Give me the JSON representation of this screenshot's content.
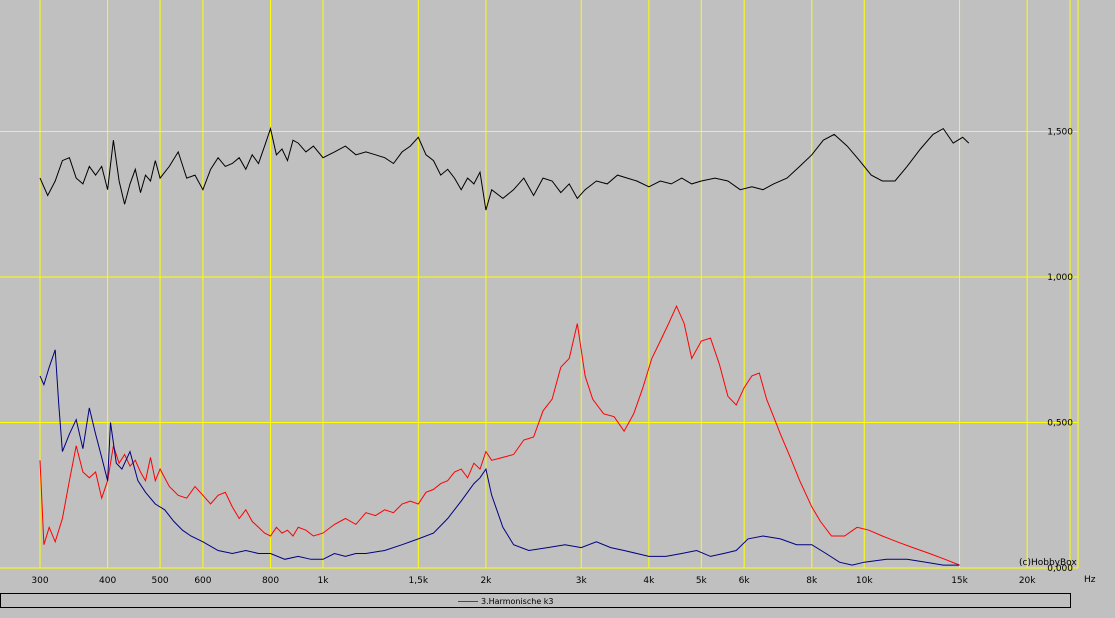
{
  "chart_data": {
    "type": "line",
    "x_scale": "log",
    "xlabel": "Hz",
    "xlim": [
      300,
      24000
    ],
    "ylim": [
      0,
      1.9
    ],
    "grid": true,
    "x_ticks": [
      {
        "v": 300,
        "label": "300"
      },
      {
        "v": 400,
        "label": "400"
      },
      {
        "v": 500,
        "label": "500"
      },
      {
        "v": 600,
        "label": "600"
      },
      {
        "v": 800,
        "label": "800"
      },
      {
        "v": 1000,
        "label": "1k"
      },
      {
        "v": 1500,
        "label": "1,5k"
      },
      {
        "v": 2000,
        "label": "2k"
      },
      {
        "v": 3000,
        "label": "3k"
      },
      {
        "v": 4000,
        "label": "4k"
      },
      {
        "v": 5000,
        "label": "5k"
      },
      {
        "v": 6000,
        "label": "6k"
      },
      {
        "v": 8000,
        "label": "8k"
      },
      {
        "v": 10000,
        "label": "10k"
      },
      {
        "v": 15000,
        "label": "15k"
      },
      {
        "v": 20000,
        "label": "20k"
      }
    ],
    "y_ticks": [
      {
        "v": 0,
        "label": "0,000"
      },
      {
        "v": 0.5,
        "label": "0,500"
      },
      {
        "v": 1.0,
        "label": "1,000"
      },
      {
        "v": 1.5,
        "label": "1,500"
      }
    ],
    "credit": "(c)HobbyBox",
    "series": [
      {
        "name": "",
        "color": "#000000",
        "points": [
          [
            300,
            1.34
          ],
          [
            310,
            1.28
          ],
          [
            320,
            1.33
          ],
          [
            330,
            1.4
          ],
          [
            340,
            1.41
          ],
          [
            350,
            1.34
          ],
          [
            360,
            1.32
          ],
          [
            370,
            1.38
          ],
          [
            380,
            1.35
          ],
          [
            390,
            1.38
          ],
          [
            400,
            1.3
          ],
          [
            410,
            1.47
          ],
          [
            420,
            1.33
          ],
          [
            430,
            1.25
          ],
          [
            440,
            1.32
          ],
          [
            450,
            1.37
          ],
          [
            460,
            1.29
          ],
          [
            470,
            1.35
          ],
          [
            480,
            1.33
          ],
          [
            490,
            1.4
          ],
          [
            500,
            1.34
          ],
          [
            520,
            1.38
          ],
          [
            540,
            1.43
          ],
          [
            560,
            1.34
          ],
          [
            580,
            1.35
          ],
          [
            600,
            1.3
          ],
          [
            620,
            1.37
          ],
          [
            640,
            1.41
          ],
          [
            660,
            1.38
          ],
          [
            680,
            1.39
          ],
          [
            700,
            1.41
          ],
          [
            720,
            1.37
          ],
          [
            740,
            1.42
          ],
          [
            760,
            1.39
          ],
          [
            780,
            1.45
          ],
          [
            800,
            1.51
          ],
          [
            820,
            1.42
          ],
          [
            840,
            1.44
          ],
          [
            860,
            1.4
          ],
          [
            880,
            1.47
          ],
          [
            900,
            1.46
          ],
          [
            930,
            1.43
          ],
          [
            960,
            1.45
          ],
          [
            1000,
            1.41
          ],
          [
            1050,
            1.43
          ],
          [
            1100,
            1.45
          ],
          [
            1150,
            1.42
          ],
          [
            1200,
            1.43
          ],
          [
            1250,
            1.42
          ],
          [
            1300,
            1.41
          ],
          [
            1350,
            1.39
          ],
          [
            1400,
            1.43
          ],
          [
            1450,
            1.45
          ],
          [
            1500,
            1.48
          ],
          [
            1550,
            1.42
          ],
          [
            1600,
            1.4
          ],
          [
            1650,
            1.35
          ],
          [
            1700,
            1.37
          ],
          [
            1750,
            1.34
          ],
          [
            1800,
            1.3
          ],
          [
            1850,
            1.34
          ],
          [
            1900,
            1.32
          ],
          [
            1950,
            1.36
          ],
          [
            2000,
            1.23
          ],
          [
            2050,
            1.3
          ],
          [
            2150,
            1.27
          ],
          [
            2250,
            1.3
          ],
          [
            2350,
            1.34
          ],
          [
            2450,
            1.28
          ],
          [
            2550,
            1.34
          ],
          [
            2650,
            1.33
          ],
          [
            2750,
            1.29
          ],
          [
            2850,
            1.32
          ],
          [
            2950,
            1.27
          ],
          [
            3050,
            1.3
          ],
          [
            3200,
            1.33
          ],
          [
            3350,
            1.32
          ],
          [
            3500,
            1.35
          ],
          [
            3650,
            1.34
          ],
          [
            3800,
            1.33
          ],
          [
            4000,
            1.31
          ],
          [
            4200,
            1.33
          ],
          [
            4400,
            1.32
          ],
          [
            4600,
            1.34
          ],
          [
            4800,
            1.32
          ],
          [
            5000,
            1.33
          ],
          [
            5300,
            1.34
          ],
          [
            5600,
            1.33
          ],
          [
            5900,
            1.3
          ],
          [
            6200,
            1.31
          ],
          [
            6500,
            1.3
          ],
          [
            6800,
            1.32
          ],
          [
            7200,
            1.34
          ],
          [
            7600,
            1.38
          ],
          [
            8000,
            1.42
          ],
          [
            8400,
            1.47
          ],
          [
            8800,
            1.49
          ],
          [
            9300,
            1.45
          ],
          [
            9800,
            1.4
          ],
          [
            10300,
            1.35
          ],
          [
            10800,
            1.33
          ],
          [
            11400,
            1.33
          ],
          [
            12000,
            1.38
          ],
          [
            12700,
            1.44
          ],
          [
            13400,
            1.49
          ],
          [
            14000,
            1.51
          ],
          [
            14600,
            1.46
          ],
          [
            15200,
            1.48
          ],
          [
            15600,
            1.46
          ]
        ]
      },
      {
        "name": "3.Harmonische k3",
        "color": "#ff0000",
        "points": [
          [
            300,
            0.37
          ],
          [
            305,
            0.08
          ],
          [
            312,
            0.14
          ],
          [
            320,
            0.09
          ],
          [
            330,
            0.17
          ],
          [
            340,
            0.3
          ],
          [
            350,
            0.42
          ],
          [
            360,
            0.33
          ],
          [
            370,
            0.31
          ],
          [
            380,
            0.33
          ],
          [
            390,
            0.24
          ],
          [
            400,
            0.3
          ],
          [
            410,
            0.42
          ],
          [
            420,
            0.36
          ],
          [
            430,
            0.39
          ],
          [
            440,
            0.35
          ],
          [
            450,
            0.37
          ],
          [
            460,
            0.33
          ],
          [
            470,
            0.3
          ],
          [
            480,
            0.38
          ],
          [
            490,
            0.3
          ],
          [
            500,
            0.34
          ],
          [
            520,
            0.28
          ],
          [
            540,
            0.25
          ],
          [
            560,
            0.24
          ],
          [
            580,
            0.28
          ],
          [
            600,
            0.25
          ],
          [
            620,
            0.22
          ],
          [
            640,
            0.25
          ],
          [
            660,
            0.26
          ],
          [
            680,
            0.21
          ],
          [
            700,
            0.17
          ],
          [
            720,
            0.2
          ],
          [
            740,
            0.16
          ],
          [
            760,
            0.14
          ],
          [
            780,
            0.12
          ],
          [
            800,
            0.11
          ],
          [
            820,
            0.14
          ],
          [
            840,
            0.12
          ],
          [
            860,
            0.13
          ],
          [
            880,
            0.11
          ],
          [
            900,
            0.14
          ],
          [
            930,
            0.13
          ],
          [
            960,
            0.11
          ],
          [
            1000,
            0.12
          ],
          [
            1050,
            0.15
          ],
          [
            1100,
            0.17
          ],
          [
            1150,
            0.15
          ],
          [
            1200,
            0.19
          ],
          [
            1250,
            0.18
          ],
          [
            1300,
            0.2
          ],
          [
            1350,
            0.19
          ],
          [
            1400,
            0.22
          ],
          [
            1450,
            0.23
          ],
          [
            1500,
            0.22
          ],
          [
            1550,
            0.26
          ],
          [
            1600,
            0.27
          ],
          [
            1650,
            0.29
          ],
          [
            1700,
            0.3
          ],
          [
            1750,
            0.33
          ],
          [
            1800,
            0.34
          ],
          [
            1850,
            0.31
          ],
          [
            1900,
            0.36
          ],
          [
            1950,
            0.34
          ],
          [
            2000,
            0.4
          ],
          [
            2050,
            0.37
          ],
          [
            2150,
            0.38
          ],
          [
            2250,
            0.39
          ],
          [
            2350,
            0.44
          ],
          [
            2450,
            0.45
          ],
          [
            2550,
            0.54
          ],
          [
            2650,
            0.58
          ],
          [
            2750,
            0.69
          ],
          [
            2850,
            0.72
          ],
          [
            2950,
            0.84
          ],
          [
            3050,
            0.66
          ],
          [
            3150,
            0.58
          ],
          [
            3300,
            0.53
          ],
          [
            3450,
            0.52
          ],
          [
            3600,
            0.47
          ],
          [
            3750,
            0.53
          ],
          [
            3900,
            0.62
          ],
          [
            4050,
            0.72
          ],
          [
            4200,
            0.78
          ],
          [
            4350,
            0.84
          ],
          [
            4500,
            0.9
          ],
          [
            4650,
            0.84
          ],
          [
            4800,
            0.72
          ],
          [
            5000,
            0.78
          ],
          [
            5200,
            0.79
          ],
          [
            5400,
            0.7
          ],
          [
            5600,
            0.59
          ],
          [
            5800,
            0.56
          ],
          [
            6000,
            0.62
          ],
          [
            6200,
            0.66
          ],
          [
            6400,
            0.67
          ],
          [
            6600,
            0.58
          ],
          [
            6800,
            0.52
          ],
          [
            7000,
            0.46
          ],
          [
            7300,
            0.38
          ],
          [
            7600,
            0.3
          ],
          [
            8000,
            0.21
          ],
          [
            8300,
            0.16
          ],
          [
            8700,
            0.11
          ],
          [
            9200,
            0.11
          ],
          [
            9700,
            0.14
          ],
          [
            10200,
            0.13
          ],
          [
            10800,
            0.11
          ],
          [
            11500,
            0.09
          ],
          [
            12300,
            0.07
          ],
          [
            13200,
            0.05
          ],
          [
            14100,
            0.03
          ],
          [
            15000,
            0.01
          ]
        ]
      },
      {
        "name": "",
        "color": "#000080",
        "points": [
          [
            300,
            0.66
          ],
          [
            305,
            0.63
          ],
          [
            312,
            0.69
          ],
          [
            320,
            0.75
          ],
          [
            325,
            0.56
          ],
          [
            330,
            0.4
          ],
          [
            340,
            0.46
          ],
          [
            350,
            0.51
          ],
          [
            360,
            0.41
          ],
          [
            370,
            0.55
          ],
          [
            380,
            0.46
          ],
          [
            390,
            0.38
          ],
          [
            400,
            0.3
          ],
          [
            405,
            0.5
          ],
          [
            415,
            0.36
          ],
          [
            425,
            0.34
          ],
          [
            440,
            0.4
          ],
          [
            455,
            0.3
          ],
          [
            470,
            0.26
          ],
          [
            490,
            0.22
          ],
          [
            510,
            0.2
          ],
          [
            530,
            0.16
          ],
          [
            550,
            0.13
          ],
          [
            570,
            0.11
          ],
          [
            600,
            0.09
          ],
          [
            640,
            0.06
          ],
          [
            680,
            0.05
          ],
          [
            720,
            0.06
          ],
          [
            760,
            0.05
          ],
          [
            800,
            0.05
          ],
          [
            850,
            0.03
          ],
          [
            900,
            0.04
          ],
          [
            950,
            0.03
          ],
          [
            1000,
            0.03
          ],
          [
            1050,
            0.05
          ],
          [
            1100,
            0.04
          ],
          [
            1150,
            0.05
          ],
          [
            1200,
            0.05
          ],
          [
            1300,
            0.06
          ],
          [
            1400,
            0.08
          ],
          [
            1500,
            0.1
          ],
          [
            1600,
            0.12
          ],
          [
            1700,
            0.17
          ],
          [
            1800,
            0.23
          ],
          [
            1900,
            0.29
          ],
          [
            1950,
            0.31
          ],
          [
            2000,
            0.34
          ],
          [
            2050,
            0.25
          ],
          [
            2150,
            0.14
          ],
          [
            2250,
            0.08
          ],
          [
            2400,
            0.06
          ],
          [
            2600,
            0.07
          ],
          [
            2800,
            0.08
          ],
          [
            3000,
            0.07
          ],
          [
            3200,
            0.09
          ],
          [
            3400,
            0.07
          ],
          [
            3600,
            0.06
          ],
          [
            3800,
            0.05
          ],
          [
            4000,
            0.04
          ],
          [
            4300,
            0.04
          ],
          [
            4600,
            0.05
          ],
          [
            4900,
            0.06
          ],
          [
            5200,
            0.04
          ],
          [
            5500,
            0.05
          ],
          [
            5800,
            0.06
          ],
          [
            6100,
            0.1
          ],
          [
            6500,
            0.11
          ],
          [
            7000,
            0.1
          ],
          [
            7500,
            0.08
          ],
          [
            8000,
            0.08
          ],
          [
            8500,
            0.05
          ],
          [
            9000,
            0.02
          ],
          [
            9500,
            0.01
          ],
          [
            10000,
            0.02
          ],
          [
            11000,
            0.03
          ],
          [
            12000,
            0.03
          ],
          [
            13000,
            0.02
          ],
          [
            14000,
            0.01
          ],
          [
            15000,
            0.01
          ]
        ]
      }
    ]
  }
}
